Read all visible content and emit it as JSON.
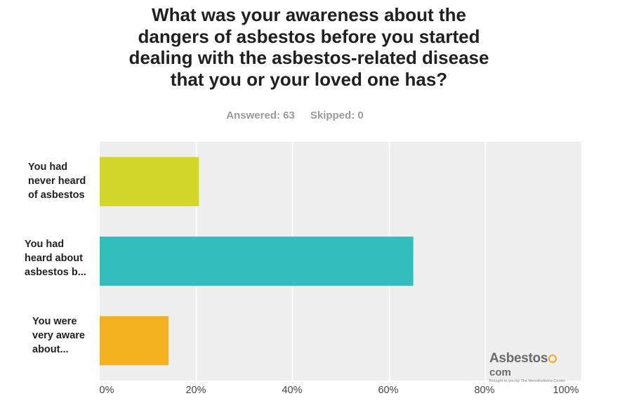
{
  "chart_data": {
    "type": "bar",
    "orientation": "horizontal",
    "title_lines": [
      "What was your awareness about the",
      "dangers of asbestos before you started",
      "dealing with the asbestos-related disease",
      "that you or your loved one has?"
    ],
    "answered": "Answered: 63",
    "skipped": "Skipped: 0",
    "categories": [
      [
        "You had",
        "never heard",
        "of asbestos"
      ],
      [
        "You had",
        "heard about",
        "asbestos b..."
      ],
      [
        "You were",
        "very aware",
        "about..."
      ]
    ],
    "values": [
      20.6,
      65.1,
      14.3
    ],
    "colors": [
      "#d2d629",
      "#34bdbd",
      "#f5b01f"
    ],
    "xlim": [
      0,
      100
    ],
    "x_ticks": [
      "0%",
      "20%",
      "40%",
      "60%",
      "80%",
      "100%"
    ],
    "grid": true,
    "unit": "%"
  },
  "logo": {
    "word": "Asbestos",
    "suffix": "com",
    "tagline": "Brought to you by The Mesothelioma Center"
  }
}
